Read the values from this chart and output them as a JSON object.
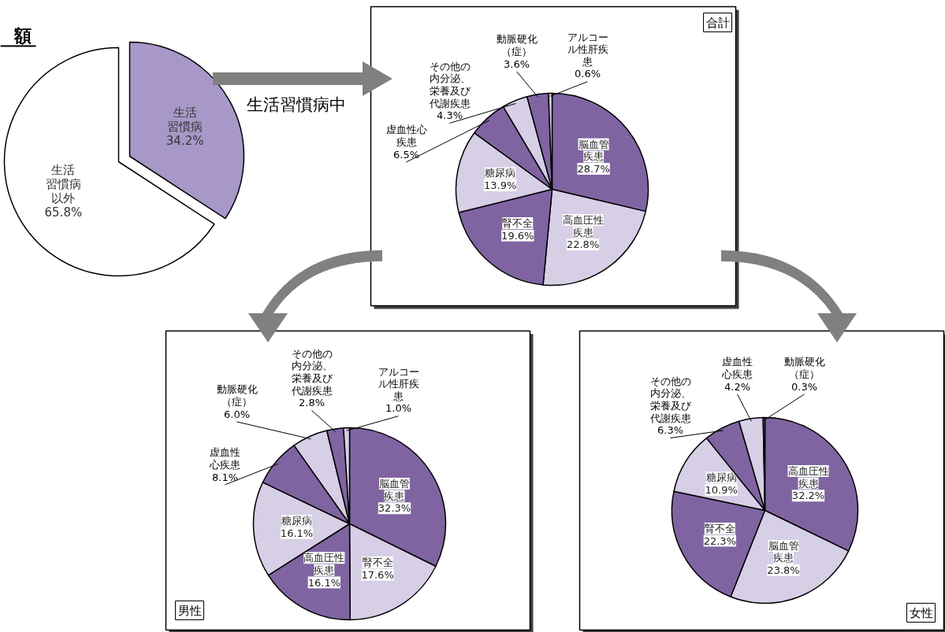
{
  "chart_data": [
    {
      "type": "pie",
      "title": "額",
      "categories": [
        "生活習慣病",
        "生活習慣病以外"
      ],
      "values": [
        34.2,
        65.8
      ],
      "colors": [
        "#a898c8",
        "#ffffff"
      ],
      "value_labels": [
        "34.2%",
        "65.8%"
      ],
      "annotations": [
        "生活習慣病中"
      ]
    },
    {
      "type": "pie",
      "title": "合計",
      "categories": [
        "脳血管疾患",
        "高血圧性疾患",
        "腎不全",
        "糖尿病",
        "虚血性心疾患",
        "その他の内分泌、栄養及び代謝疾患",
        "動脈硬化（症）",
        "アルコール性肝疾患"
      ],
      "values": [
        28.7,
        22.8,
        19.6,
        13.9,
        6.5,
        4.3,
        3.6,
        0.6
      ],
      "colors": [
        "#8064a2",
        "#d6cfe6",
        "#8064a2",
        "#d6cfe6",
        "#8064a2",
        "#d6cfe6",
        "#8064a2",
        "#d6cfe6"
      ],
      "value_labels": [
        "28.7%",
        "22.8%",
        "19.6%",
        "13.9%",
        "6.5%",
        "4.3%",
        "3.6%",
        "0.6%"
      ]
    },
    {
      "type": "pie",
      "title": "男性",
      "categories": [
        "脳血管疾患",
        "腎不全",
        "高血圧性疾患",
        "糖尿病",
        "虚血性心疾患",
        "動脈硬化（症）",
        "その他の内分泌、栄養及び代謝疾患",
        "アルコール性肝疾患"
      ],
      "values": [
        32.3,
        17.6,
        16.1,
        16.1,
        8.1,
        6.0,
        2.8,
        1.0
      ],
      "colors": [
        "#8064a2",
        "#d6cfe6",
        "#8064a2",
        "#d6cfe6",
        "#8064a2",
        "#d6cfe6",
        "#8064a2",
        "#d6cfe6"
      ],
      "value_labels": [
        "32.3%",
        "17.6%",
        "16.1%",
        "16.1%",
        "8.1%",
        "6.0%",
        "2.8%",
        "1.0%"
      ]
    },
    {
      "type": "pie",
      "title": "女性",
      "categories": [
        "高血圧性疾患",
        "脳血管疾患",
        "腎不全",
        "糖尿病",
        "その他の内分泌、栄養及び代謝疾患",
        "虚血性心疾患",
        "動脈硬化（症）"
      ],
      "values": [
        32.2,
        23.8,
        22.3,
        10.9,
        6.3,
        4.2,
        0.3
      ],
      "colors": [
        "#8064a2",
        "#d6cfe6",
        "#8064a2",
        "#d6cfe6",
        "#8064a2",
        "#d6cfe6",
        "#8064a2"
      ],
      "value_labels": [
        "32.2%",
        "23.8%",
        "22.3%",
        "10.9%",
        "6.3%",
        "4.2%",
        "0.3%"
      ]
    }
  ]
}
